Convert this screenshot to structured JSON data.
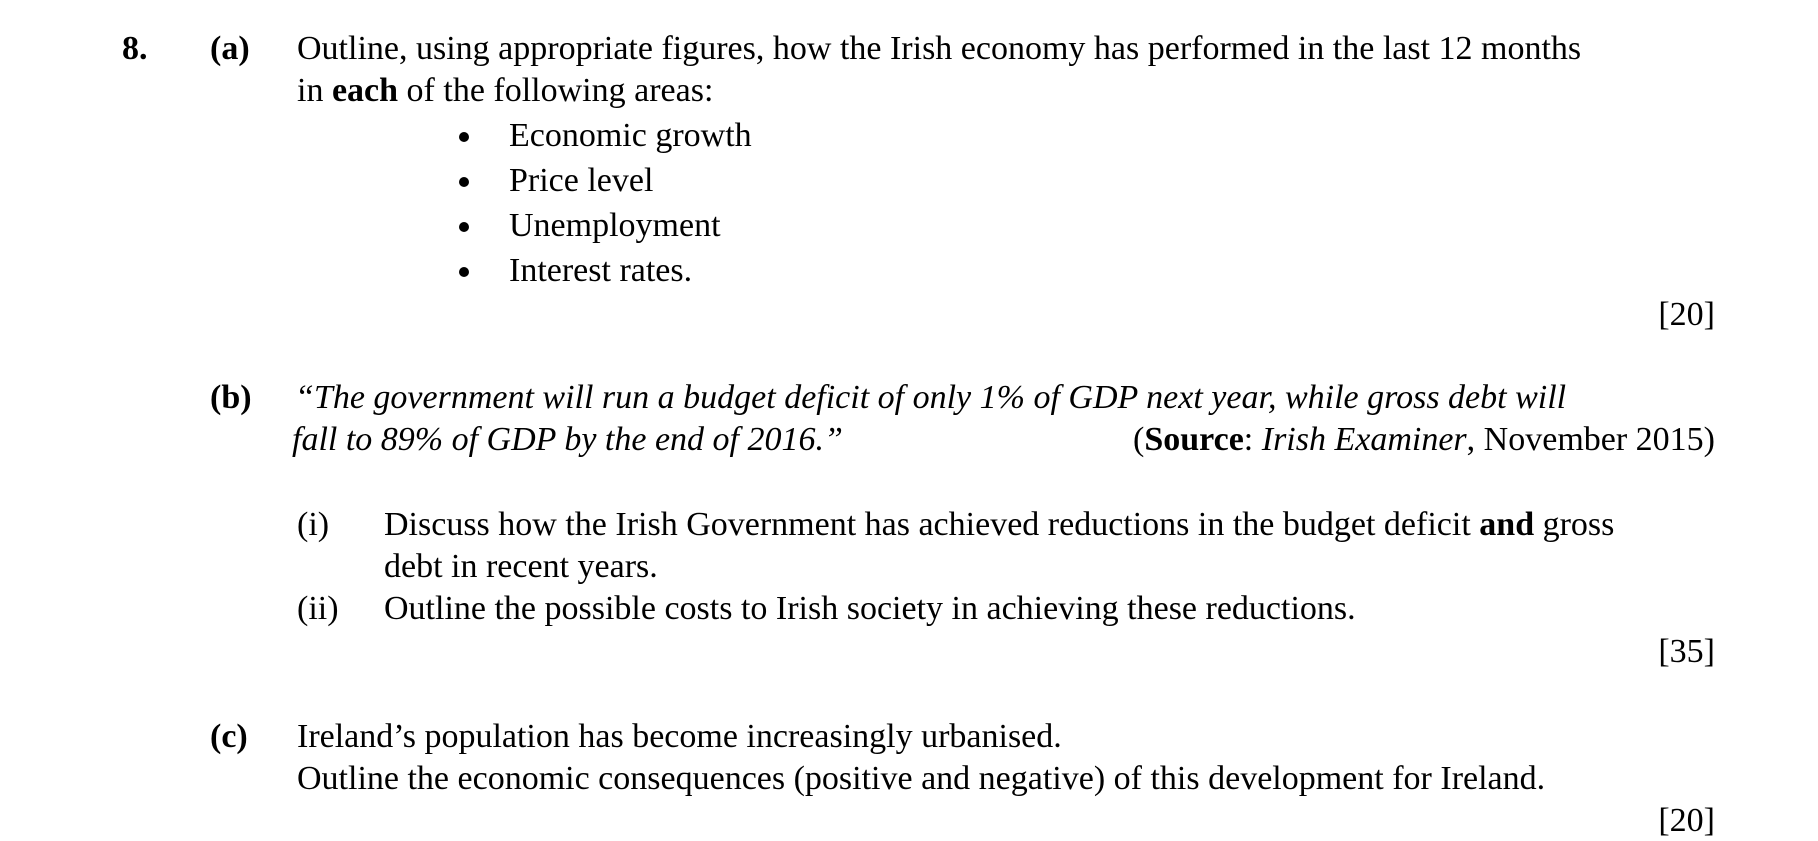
{
  "question": {
    "number": "8.",
    "parts": [
      {
        "label": "(a)",
        "line1": "Outline, using appropriate figures, how the Irish economy has performed in the last 12 months",
        "line2": [
          "in ",
          "each",
          " of the following areas:"
        ],
        "bullets": [
          "Economic growth",
          "Price level",
          "Unemployment",
          "Interest rates."
        ],
        "marks": "[20]"
      },
      {
        "label": "(b)",
        "quote": [
          "“The government will run a budget deficit of only 1% of GDP next year, while gross debt will",
          "fall to 89% of GDP by the end of 2016.”"
        ],
        "source": [
          "(",
          "Source",
          ": ",
          "Irish Examiner",
          ", November 2015)"
        ],
        "subparts": [
          {
            "label": "(i)",
            "line1": [
              "Discuss how the Irish Government has achieved reductions in the budget deficit ",
              "and",
              " gross"
            ],
            "line2": "debt in recent years."
          },
          {
            "label": "(ii)",
            "line1": "Outline the possible costs to Irish society in achieving these reductions."
          }
        ],
        "marks": "[35]"
      },
      {
        "label": "(c)",
        "lines": [
          "Ireland’s population has become increasingly urbanised.",
          "Outline the economic consequences (positive and negative) of this development for Ireland."
        ],
        "marks": "[20]"
      }
    ]
  }
}
